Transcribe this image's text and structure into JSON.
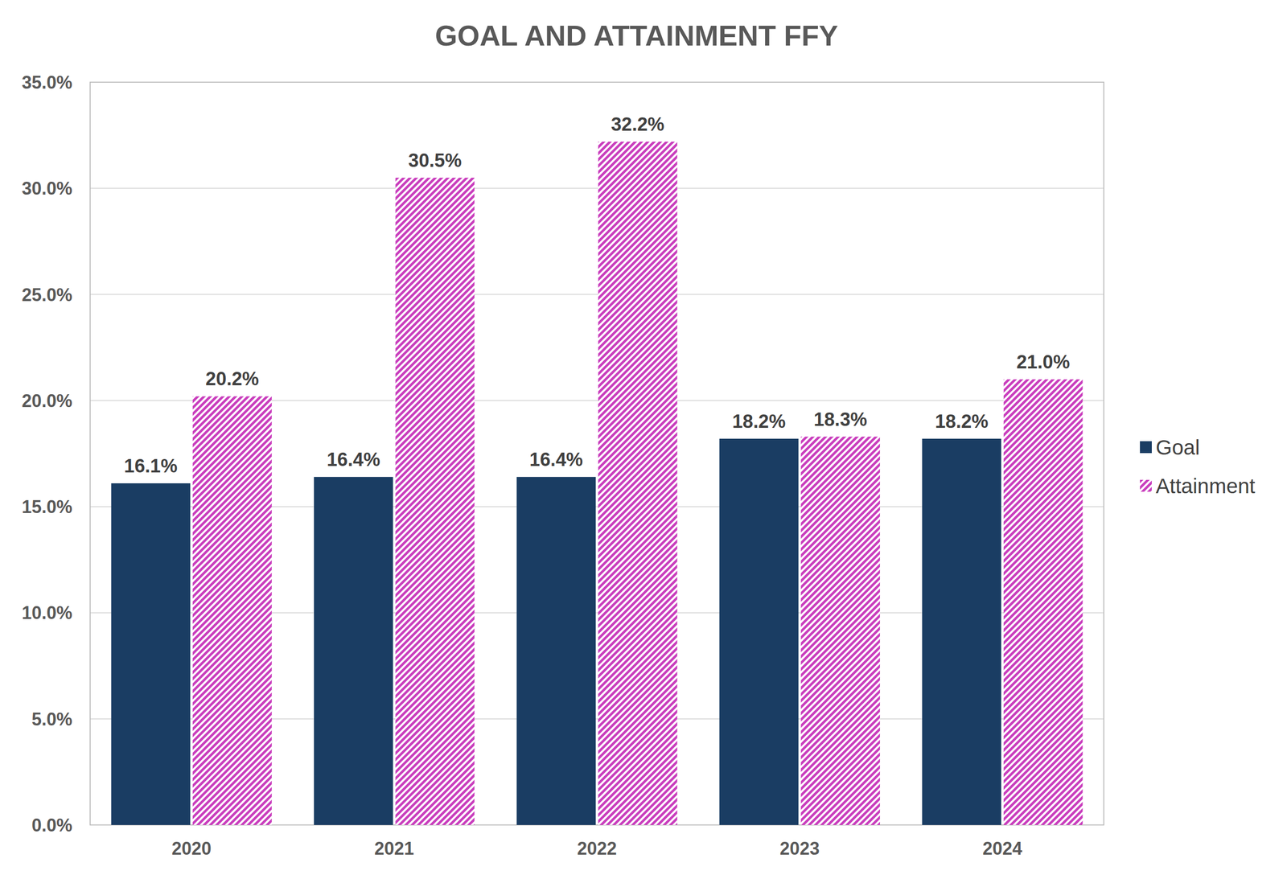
{
  "chart_data": {
    "type": "bar",
    "title": "GOAL AND ATTAINMENT FFY",
    "categories": [
      "2020",
      "2021",
      "2022",
      "2023",
      "2024"
    ],
    "series": [
      {
        "name": "Goal",
        "color": "#1a3d63",
        "values": [
          16.1,
          16.4,
          16.4,
          18.2,
          18.2
        ],
        "value_labels": [
          "16.1%",
          "16.4%",
          "16.4%",
          "18.2%",
          "18.2%"
        ]
      },
      {
        "name": "Attainment",
        "color": "#c93dbd",
        "values": [
          20.2,
          30.5,
          32.2,
          18.3,
          21.0
        ],
        "value_labels": [
          "20.2%",
          "30.5%",
          "32.2%",
          "18.3%",
          "21.0%"
        ]
      }
    ],
    "ylim": [
      0,
      35
    ],
    "yticks": [
      {
        "value": 0,
        "label": "0.0%"
      },
      {
        "value": 5,
        "label": "5.0%"
      },
      {
        "value": 10,
        "label": "10.0%"
      },
      {
        "value": 15,
        "label": "15.0%"
      },
      {
        "value": 20,
        "label": "20.0%"
      },
      {
        "value": 25,
        "label": "25.0%"
      },
      {
        "value": 30,
        "label": "30.0%"
      },
      {
        "value": 35,
        "label": "35.0%"
      }
    ],
    "grid": true,
    "legend": "right",
    "data_labels": true
  }
}
